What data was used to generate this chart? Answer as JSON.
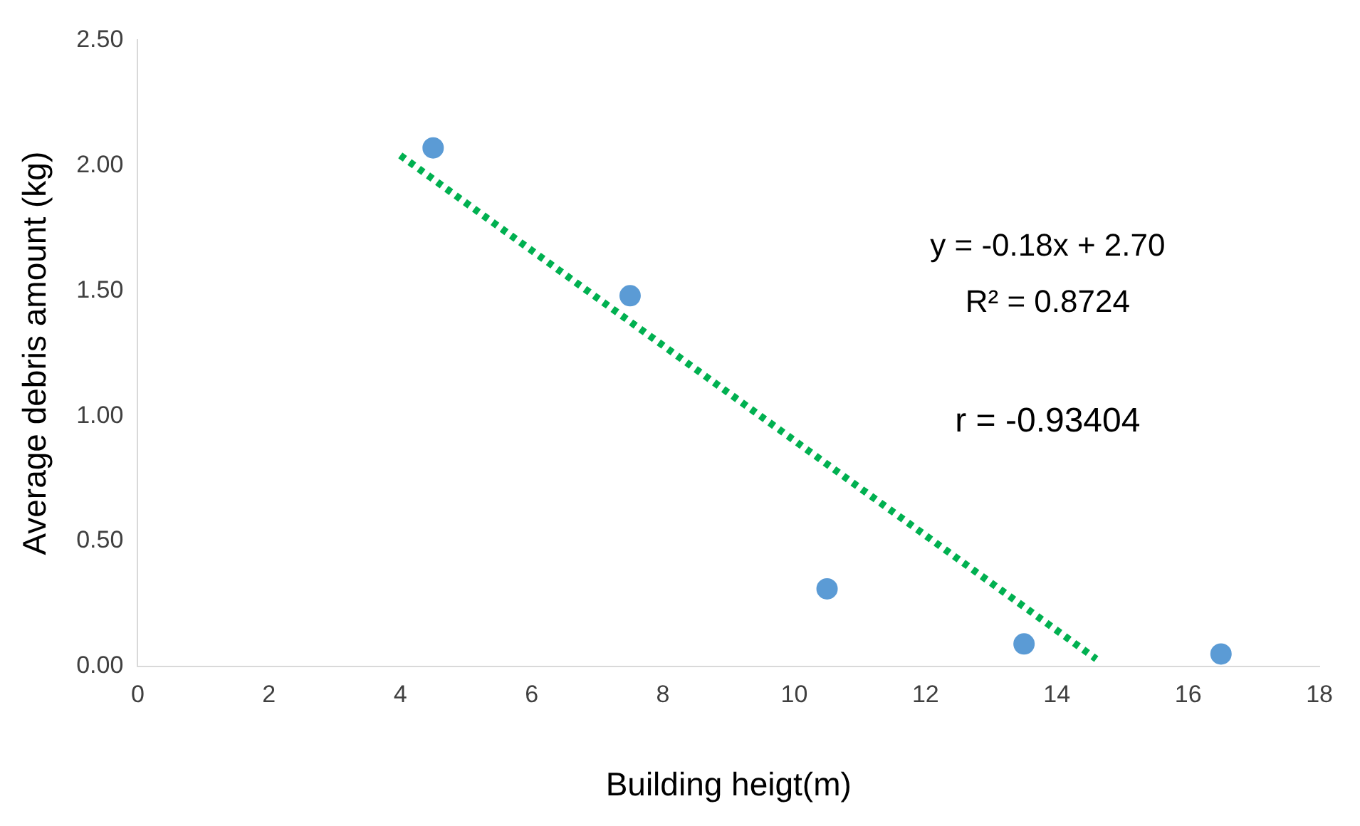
{
  "chart_data": {
    "type": "scatter",
    "xlabel": "Building heigt(m)",
    "ylabel": "Average debris amount (kg)",
    "xlim": [
      0,
      18
    ],
    "xticks": [
      0,
      2,
      4,
      6,
      8,
      10,
      12,
      14,
      16,
      18
    ],
    "ylim": [
      0,
      2.5
    ],
    "yticks": [
      {
        "value": 0,
        "label": "0.00"
      },
      {
        "value": 0.5,
        "label": "0.50"
      },
      {
        "value": 1,
        "label": "1.00"
      },
      {
        "value": 1.5,
        "label": "1.50"
      },
      {
        "value": 2,
        "label": "2.00"
      },
      {
        "value": 2.5,
        "label": "2.50"
      }
    ],
    "grid": false,
    "legend": false,
    "marker": "circle",
    "series": [
      {
        "color": "#5b9bd5",
        "x": [
          4.5,
          7.5,
          10.5,
          13.5,
          16.5
        ],
        "values": [
          2.07,
          1.48,
          0.31,
          0.09,
          0.05
        ]
      },
      {
        "type": "line",
        "color": "#00b050",
        "line_style": "dotted",
        "marker": "none",
        "x": [
          4,
          14.6
        ],
        "values": [
          2.04,
          0.03
        ]
      }
    ],
    "annotations": [
      "y = -0.18x + 2.70",
      "R² = 0.8724",
      "r = -0.93404"
    ]
  }
}
